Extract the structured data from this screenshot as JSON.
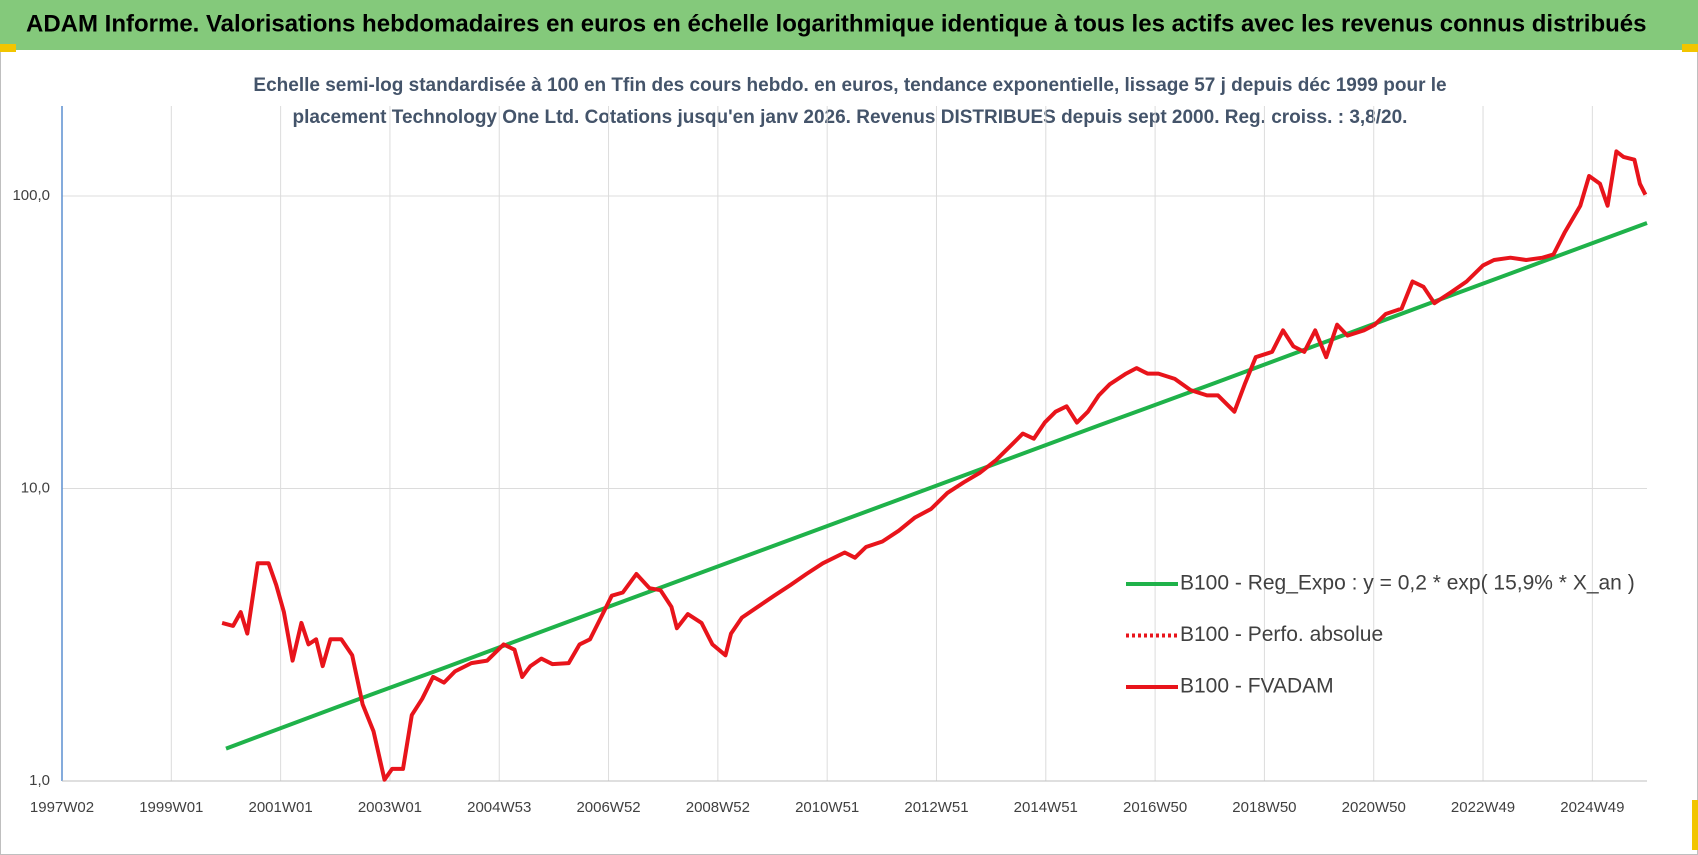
{
  "header": {
    "title": "ADAM Informe. Valorisations hebdomadaires en euros en échelle logarithmique identique à tous les actifs avec les revenus connus distribués"
  },
  "chart_data": {
    "type": "line",
    "title": "Echelle semi-log standardisée à 100 en Tfin des cours hebdo. en euros, tendance exponentielle, lissage 57 j depuis déc 1999 pour le placement Technology One Ltd. Cotations jusqu'en janv 2026. Revenus DISTRIBUES depuis sept 2000. Reg. croiss. : 3,8/20.",
    "xlim": [
      1997,
      2026
    ],
    "xticks": [
      {
        "value": 1997,
        "label": "1997W02"
      },
      {
        "value": 1999,
        "label": "1999W01"
      },
      {
        "value": 2001,
        "label": "2001W01"
      },
      {
        "value": 2003,
        "label": "2003W01"
      },
      {
        "value": 2005,
        "label": "2004W53"
      },
      {
        "value": 2007,
        "label": "2006W52"
      },
      {
        "value": 2009,
        "label": "2008W52"
      },
      {
        "value": 2011,
        "label": "2010W51"
      },
      {
        "value": 2013,
        "label": "2012W51"
      },
      {
        "value": 2015,
        "label": "2014W51"
      },
      {
        "value": 2017,
        "label": "2016W50"
      },
      {
        "value": 2019,
        "label": "2018W50"
      },
      {
        "value": 2021,
        "label": "2020W50"
      },
      {
        "value": 2023,
        "label": "2022W49"
      },
      {
        "value": 2025,
        "label": "2024W49"
      }
    ],
    "ylim": [
      1,
      203
    ],
    "yticks": [
      {
        "value": 1,
        "label": "1,0"
      },
      {
        "value": 10,
        "label": "10,0"
      },
      {
        "value": 100,
        "label": "100,0"
      }
    ],
    "y_log_scale": true,
    "grid": true,
    "legend_position": "lower right",
    "series": [
      {
        "name": "B100 - Reg_Expo : y = 0,2 * exp( 15,9% *  X_an )",
        "color": "#1fb24a",
        "dash": "solid",
        "x": [
          2000,
          2002,
          2004,
          2006,
          2008,
          2010,
          2012,
          2014,
          2016,
          2018,
          2020,
          2022,
          2024,
          2026
        ],
        "values": [
          1.29,
          1.78,
          2.44,
          3.36,
          4.62,
          6.35,
          8.72,
          11.99,
          16.5,
          22.6,
          31.1,
          42.8,
          58.8,
          80.8
        ]
      },
      {
        "name": "B100 - Perfo. absolue",
        "color": "#e8141b",
        "dash": "dotted",
        "x": [],
        "values": []
      },
      {
        "name": "B100 - FVADAM",
        "color": "#e8141b",
        "dash": "solid",
        "x": [
          1999.93,
          2000.13,
          2000.27,
          2000.39,
          2000.58,
          2000.78,
          2000.92,
          2001.06,
          2001.22,
          2001.38,
          2001.51,
          2001.65,
          2001.77,
          2001.91,
          2002.11,
          2002.31,
          2002.5,
          2002.7,
          2002.9,
          2003.04,
          2003.24,
          2003.4,
          2003.59,
          2003.79,
          2003.99,
          2004.19,
          2004.49,
          2004.78,
          2005.08,
          2005.28,
          2005.42,
          2005.57,
          2005.77,
          2005.97,
          2006.27,
          2006.47,
          2006.66,
          2006.86,
          2007.06,
          2007.26,
          2007.51,
          2007.75,
          2007.95,
          2008.15,
          2008.25,
          2008.45,
          2008.7,
          2008.9,
          2009.14,
          2009.24,
          2009.44,
          2009.73,
          2010.03,
          2010.33,
          2010.62,
          2010.92,
          2011.32,
          2011.51,
          2011.71,
          2012.01,
          2012.31,
          2012.6,
          2012.9,
          2013.2,
          2013.5,
          2013.79,
          2014.09,
          2014.39,
          2014.58,
          2014.78,
          2014.98,
          2015.18,
          2015.38,
          2015.57,
          2015.77,
          2015.97,
          2016.17,
          2016.47,
          2016.66,
          2016.86,
          2017.06,
          2017.36,
          2017.65,
          2017.95,
          2018.15,
          2018.45,
          2018.64,
          2018.84,
          2019.14,
          2019.34,
          2019.53,
          2019.73,
          2019.93,
          2020.13,
          2020.33,
          2020.52,
          2020.82,
          2021.02,
          2021.22,
          2021.51,
          2021.71,
          2021.91,
          2022.11,
          2022.41,
          2022.7,
          2023.0,
          2023.2,
          2023.5,
          2023.79,
          2024.09,
          2024.29,
          2024.49,
          2024.78,
          2024.94,
          2025.14,
          2025.28,
          2025.44,
          2025.57,
          2025.77,
          2025.87,
          2025.97
        ],
        "values": [
          3.47,
          3.39,
          3.78,
          3.19,
          5.55,
          5.55,
          4.68,
          3.78,
          2.58,
          3.47,
          2.93,
          3.05,
          2.47,
          3.05,
          3.05,
          2.69,
          1.83,
          1.48,
          1.01,
          1.1,
          1.1,
          1.68,
          1.91,
          2.27,
          2.17,
          2.37,
          2.53,
          2.58,
          2.93,
          2.81,
          2.27,
          2.47,
          2.62,
          2.51,
          2.53,
          2.93,
          3.05,
          3.62,
          4.3,
          4.41,
          5.1,
          4.56,
          4.49,
          3.94,
          3.33,
          3.72,
          3.47,
          2.93,
          2.69,
          3.19,
          3.62,
          3.94,
          4.3,
          4.68,
          5.1,
          5.55,
          6.04,
          5.8,
          6.31,
          6.59,
          7.17,
          7.94,
          8.51,
          9.66,
          10.5,
          11.3,
          12.5,
          14.2,
          15.4,
          14.8,
          16.8,
          18.3,
          19.1,
          16.8,
          18.3,
          20.8,
          22.7,
          24.7,
          25.8,
          24.7,
          24.7,
          23.7,
          21.7,
          20.8,
          20.8,
          18.3,
          22.7,
          28.1,
          29.3,
          34.7,
          30.6,
          29.3,
          34.7,
          28.1,
          36.3,
          33.3,
          34.7,
          36.3,
          39.5,
          41.2,
          51.0,
          48.9,
          43.0,
          46.8,
          51.0,
          57.9,
          60.4,
          61.5,
          60.4,
          61.5,
          63.1,
          74.8,
          92.6,
          117,
          110,
          92.6,
          142,
          136,
          133,
          110,
          101
        ]
      }
    ]
  }
}
